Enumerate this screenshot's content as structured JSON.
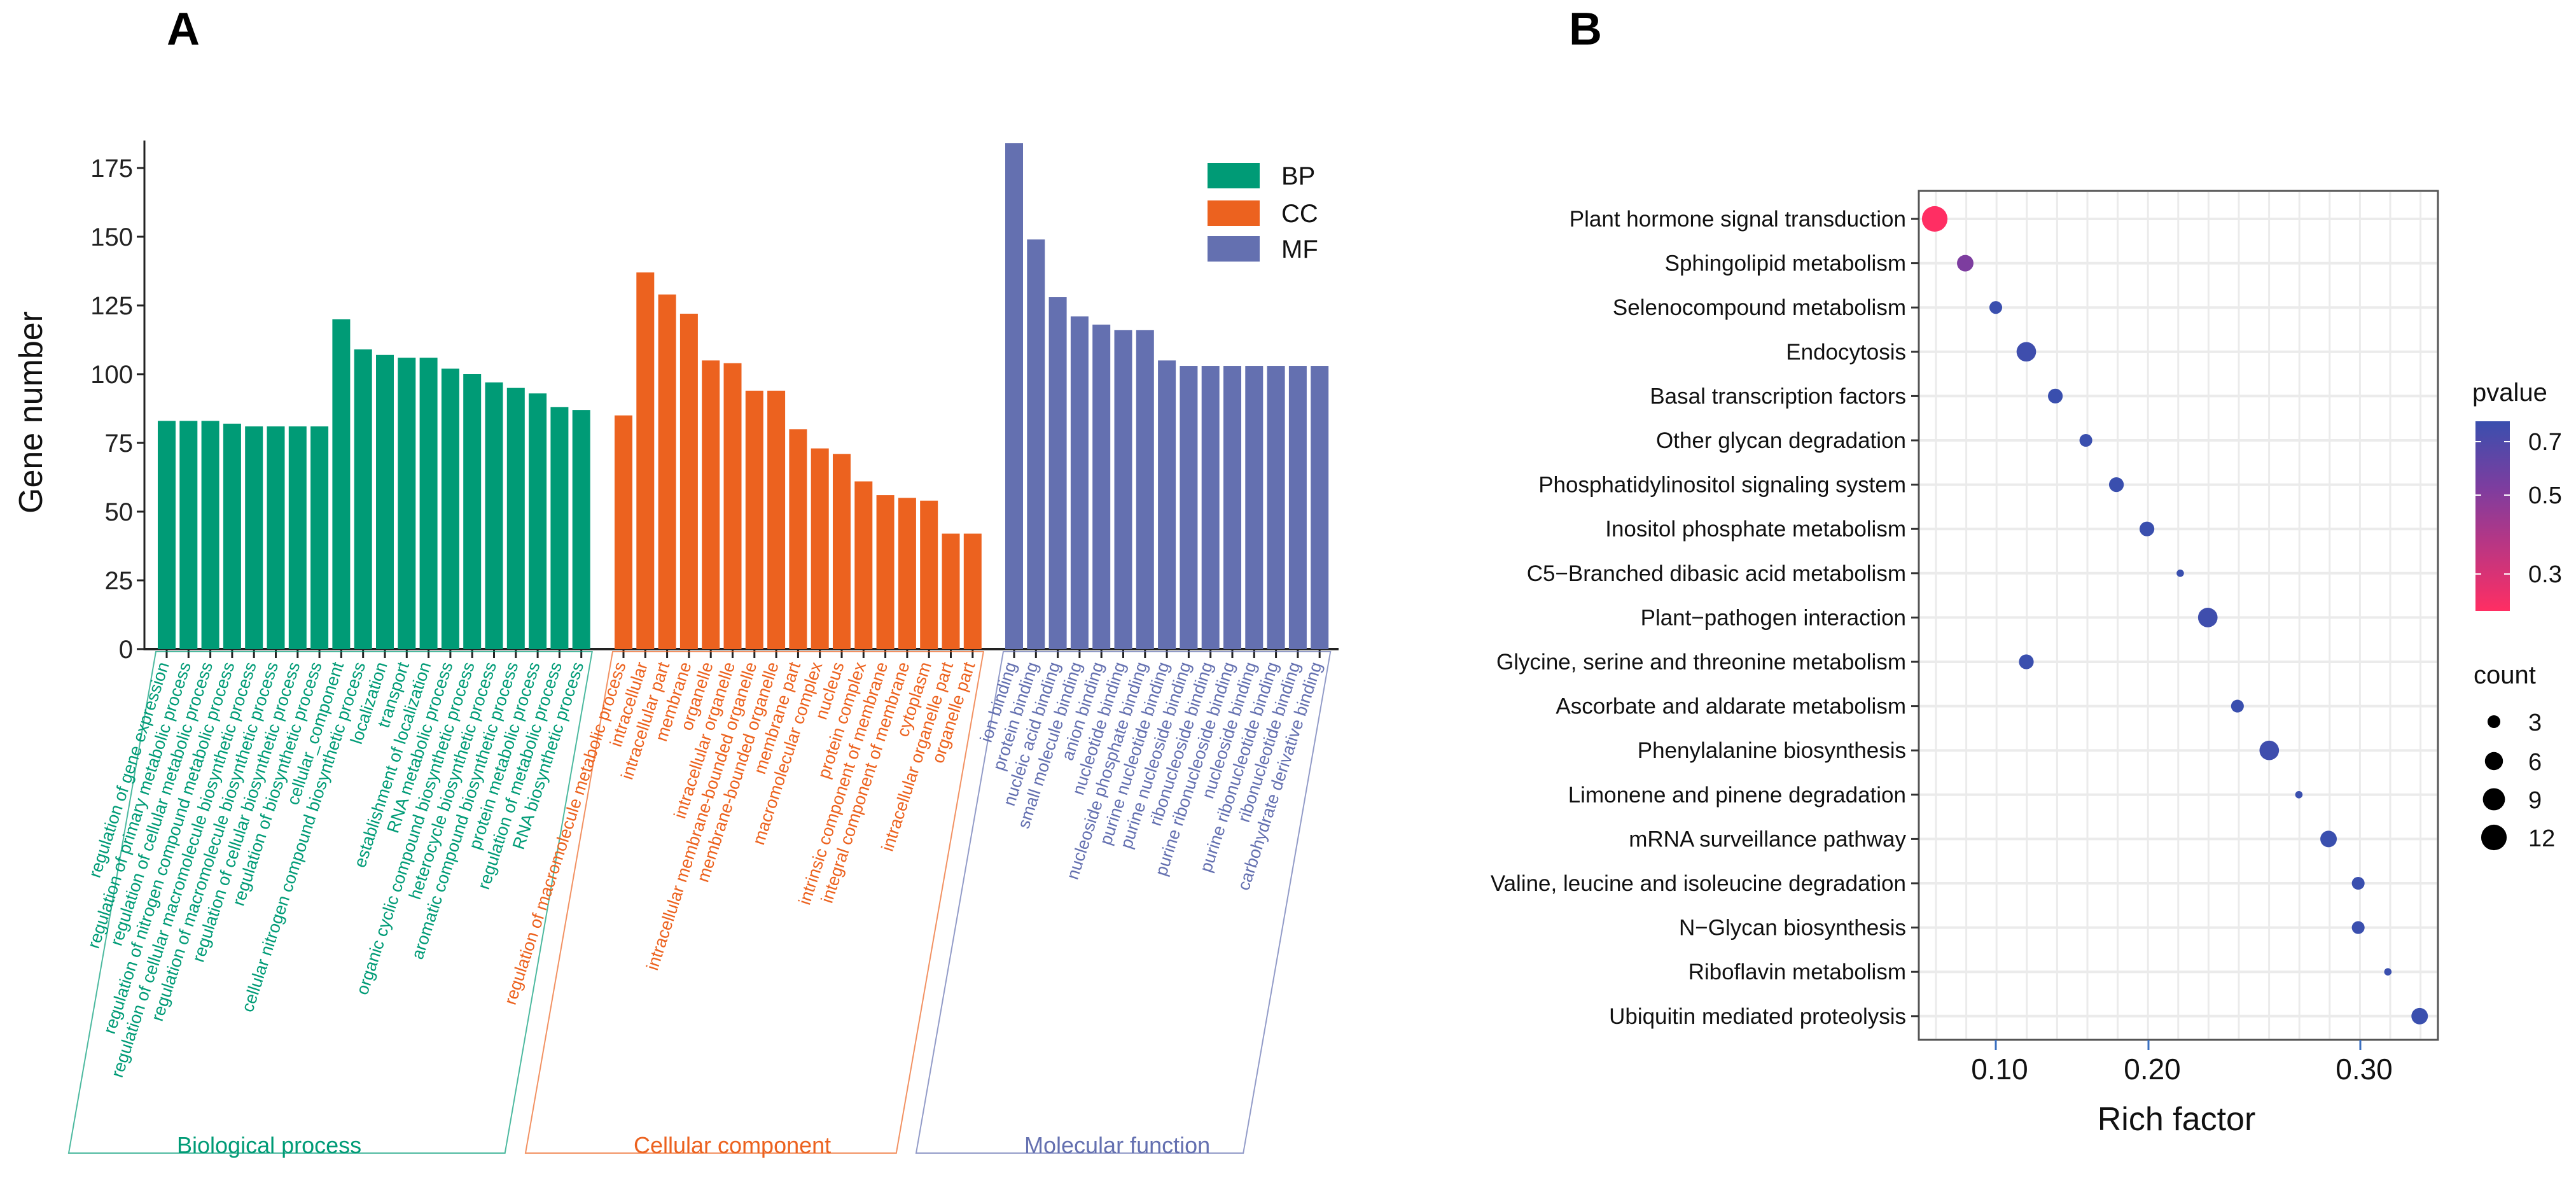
{
  "panels": {
    "a_label": "A",
    "b_label": "B"
  },
  "chart_data": [
    {
      "type": "bar",
      "title": "",
      "xlabel": "",
      "ylabel": "Gene number",
      "ylim": [
        0,
        185
      ],
      "yticks": [
        0,
        25,
        50,
        75,
        100,
        125,
        150,
        175
      ],
      "legend": {
        "placement": "top-right",
        "entries": [
          "BP",
          "CC",
          "MF"
        ]
      },
      "colors": {
        "BP": "#009b76",
        "CC": "#ec621f",
        "MF": "#6470b0"
      },
      "groups": [
        {
          "key": "BP",
          "name": "Biological process",
          "categories": [
            "regulation of gene expression",
            "regulation of primary metabolic process",
            "regulation of cellular metabolic process",
            "regulation of nitrogen compound metabolic process",
            "regulation of cellular macromolecule biosynthetic process",
            "regulation of macromolecule biosynthetic process",
            "regulation of cellular biosynthetic process",
            "regulation of biosynthetic process",
            "cellular_component",
            "cellular nitrogen compound biosynthetic process",
            "localization",
            "transport",
            "establishment of localization",
            "RNA metabolic process",
            "organic cyclic compound biosynthetic process",
            "heterocycle biosynthetic process",
            "aromatic compound biosynthetic process",
            "protein metabolic process",
            "regulation of metabolic process",
            "RNA biosynthetic process"
          ],
          "values": [
            83,
            83,
            83,
            82,
            81,
            81,
            81,
            81,
            120,
            109,
            107,
            106,
            106,
            102,
            100,
            97,
            95,
            93,
            88,
            87
          ]
        },
        {
          "key": "CC",
          "name": "Cellular component",
          "categories": [
            "regulation of macromolecule metabolic process",
            "intracellular",
            "intracellular part",
            "membrane",
            "organelle",
            "intracellular organelle",
            "intracellular membrane-bounded organelle",
            "membrane-bounded organelle",
            "membrane part",
            "macromolecular complex",
            "nucleus",
            "protein complex",
            "intrinsic component of membrane",
            "integral component of membrane",
            "cytoplasm",
            "intracellular organelle part",
            "organelle part"
          ],
          "values": [
            85,
            137,
            129,
            122,
            105,
            104,
            94,
            94,
            80,
            73,
            71,
            61,
            56,
            55,
            54,
            42,
            42
          ]
        },
        {
          "key": "MF",
          "name": "Molecular function",
          "categories": [
            "ion binding",
            "protein binding",
            "nucleic acid binding",
            "small molecule binding",
            "anion binding",
            "nucleotide binding",
            "nucleoside phosphate binding",
            "purine nucleotide binding",
            "purine nucleoside binding",
            "ribonucleoside binding",
            "purine ribonucleoside binding",
            "nucleoside binding",
            "purine ribonucleotide binding",
            "ribonucleotide binding",
            "carbohydrate derivative binding"
          ],
          "values": [
            184,
            149,
            128,
            121,
            118,
            116,
            116,
            105,
            103,
            103,
            103,
            103,
            103,
            103,
            103
          ]
        }
      ]
    },
    {
      "type": "scatter",
      "title": "",
      "xlabel": "Rich factor",
      "ylabel": "",
      "xticks": [
        0.1,
        0.2,
        0.3
      ],
      "xtick_labels": [
        "0.10",
        "0.20",
        "0.30"
      ],
      "grid": true,
      "categories": [
        "Plant hormone signal transduction",
        "Sphingolipid metabolism",
        "Selenocompound metabolism",
        "Endocytosis",
        "Basal transcription factors",
        "Other glycan degradation",
        "Phosphatidylinositol signaling system",
        "Inositol phosphate metabolism",
        "C5−Branched dibasic acid metabolism",
        "Plant−pathogen interaction",
        "Glycine, serine and threonine metabolism",
        "Ascorbate and aldarate metabolism",
        "Phenylalanine biosynthesis",
        "Limonene and pinene degradation",
        "mRNA surveillance pathway",
        "Valine, leucine and isoleucine degradation",
        "N−Glycan biosynthesis",
        "Riboflavin metabolism",
        "Ubiquitin mediated proteolysis"
      ],
      "rich_factor": [
        0.06,
        0.08,
        0.1,
        0.12,
        0.139,
        0.159,
        0.179,
        0.199,
        0.215,
        0.228,
        0.12,
        0.242,
        0.257,
        0.271,
        0.285,
        0.299,
        0.299,
        0.313,
        0.328
      ],
      "count": [
        12,
        5,
        3,
        7,
        4,
        3,
        4,
        4,
        1,
        7,
        4,
        3,
        7,
        1,
        5,
        3,
        3,
        1,
        5
      ],
      "pvalue": [
        0.2,
        0.48,
        0.74,
        0.72,
        0.74,
        0.75,
        0.74,
        0.74,
        0.76,
        0.72,
        0.74,
        0.75,
        0.72,
        0.76,
        0.74,
        0.75,
        0.75,
        0.76,
        0.74
      ],
      "color_legend": {
        "title": "pvalue",
        "ticks": [
          "0.7",
          "0.5",
          "0.3"
        ],
        "low_color": "#ff2e63",
        "mid_color": "#7d3d9f",
        "high_color": "#3a4fae"
      },
      "size_legend": {
        "title": "count",
        "values": [
          3,
          6,
          9,
          12
        ],
        "labels": [
          "3",
          "6",
          "9",
          "12"
        ]
      }
    }
  ]
}
